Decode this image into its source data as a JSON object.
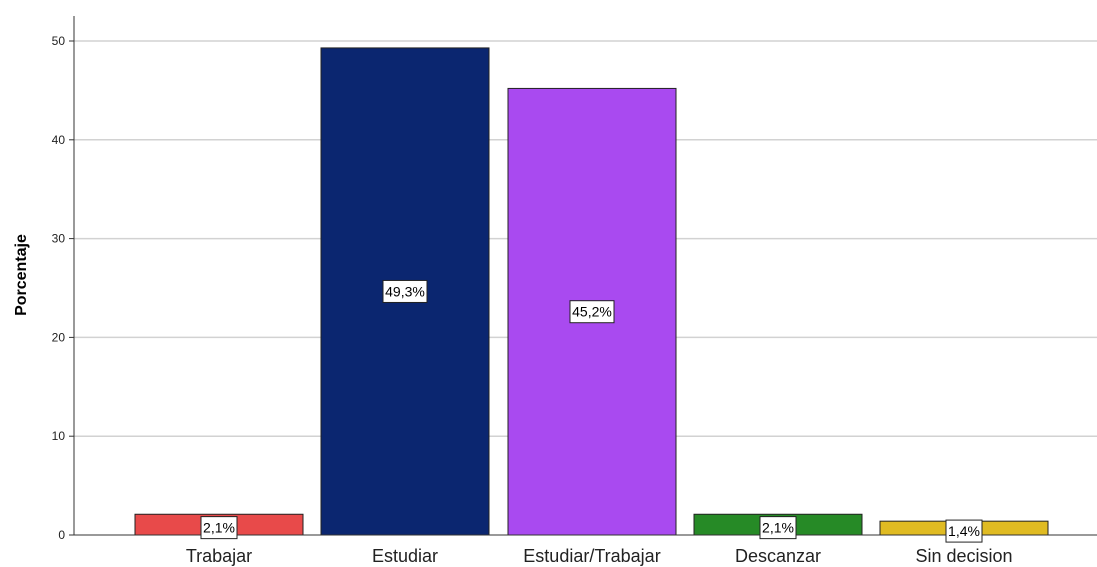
{
  "chart_data": {
    "type": "bar",
    "title": "",
    "xlabel": "",
    "ylabel": "Porcentaje",
    "ylim": [
      0,
      52
    ],
    "yticks": [
      0,
      10,
      20,
      30,
      40,
      50
    ],
    "grid": true,
    "categories": [
      "Trabajar",
      "Estudiar",
      "Estudiar/Trabajar",
      "Descanzar",
      "Sin decision"
    ],
    "values": [
      2.1,
      49.3,
      45.2,
      2.1,
      1.4
    ],
    "data_labels": [
      "2,1%",
      "49,3%",
      "45,2%",
      "2,1%",
      "1,4%"
    ],
    "colors": [
      "#e84a4a",
      "#0b2670",
      "#a94af0",
      "#268a26",
      "#e0bb22"
    ]
  }
}
